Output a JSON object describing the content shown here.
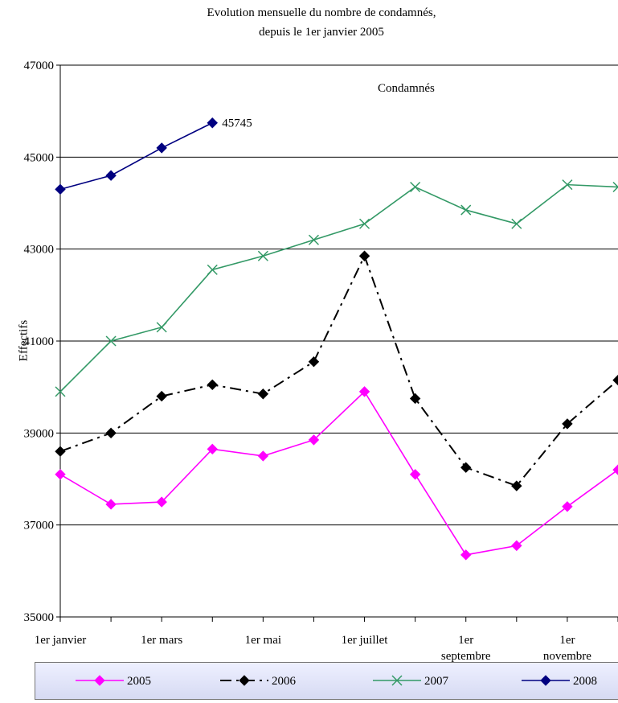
{
  "chart_data": {
    "type": "line",
    "title_lines": [
      "Evolution mensuelle du nombre de condamnés,",
      "depuis le 1er janvier 2005"
    ],
    "annotation": "Condamnés",
    "ylabel": "Effectifs",
    "xlabel": "",
    "ylim": [
      35000,
      47000
    ],
    "yticks": [
      "35000",
      "37000",
      "39000",
      "41000",
      "43000",
      "45000",
      "47000"
    ],
    "x_tick_labels": [
      [
        "1er janvier"
      ],
      [
        "1er mars"
      ],
      [
        "1er mai"
      ],
      [
        "1er juillet"
      ],
      [
        "1er",
        "septembre"
      ],
      [
        "1er",
        "novembre"
      ]
    ],
    "grid": "horizontal",
    "legend_position": "bottom",
    "series": [
      {
        "name": "2005",
        "color": "#ff00ff",
        "dash": "solid",
        "marker": "diamond",
        "values": [
          38100,
          37450,
          37500,
          38650,
          38500,
          38850,
          39900,
          38100,
          36350,
          36550,
          37400,
          38200
        ]
      },
      {
        "name": "2006",
        "color": "#000000",
        "dash": "dashdot",
        "marker": "diamond",
        "values": [
          38600,
          39000,
          39800,
          40050,
          39850,
          40550,
          42850,
          39750,
          38250,
          37850,
          39200,
          40150
        ]
      },
      {
        "name": "2007",
        "color": "#339966",
        "dash": "solid",
        "marker": "x",
        "values": [
          39900,
          41000,
          41300,
          42550,
          42850,
          43200,
          43550,
          44350,
          43850,
          43550,
          44400,
          44350
        ]
      },
      {
        "name": "2008",
        "color": "#000080",
        "dash": "solid",
        "marker": "diamond",
        "values": [
          44300,
          44600,
          45200,
          45745
        ],
        "end_label": "45745"
      }
    ]
  }
}
